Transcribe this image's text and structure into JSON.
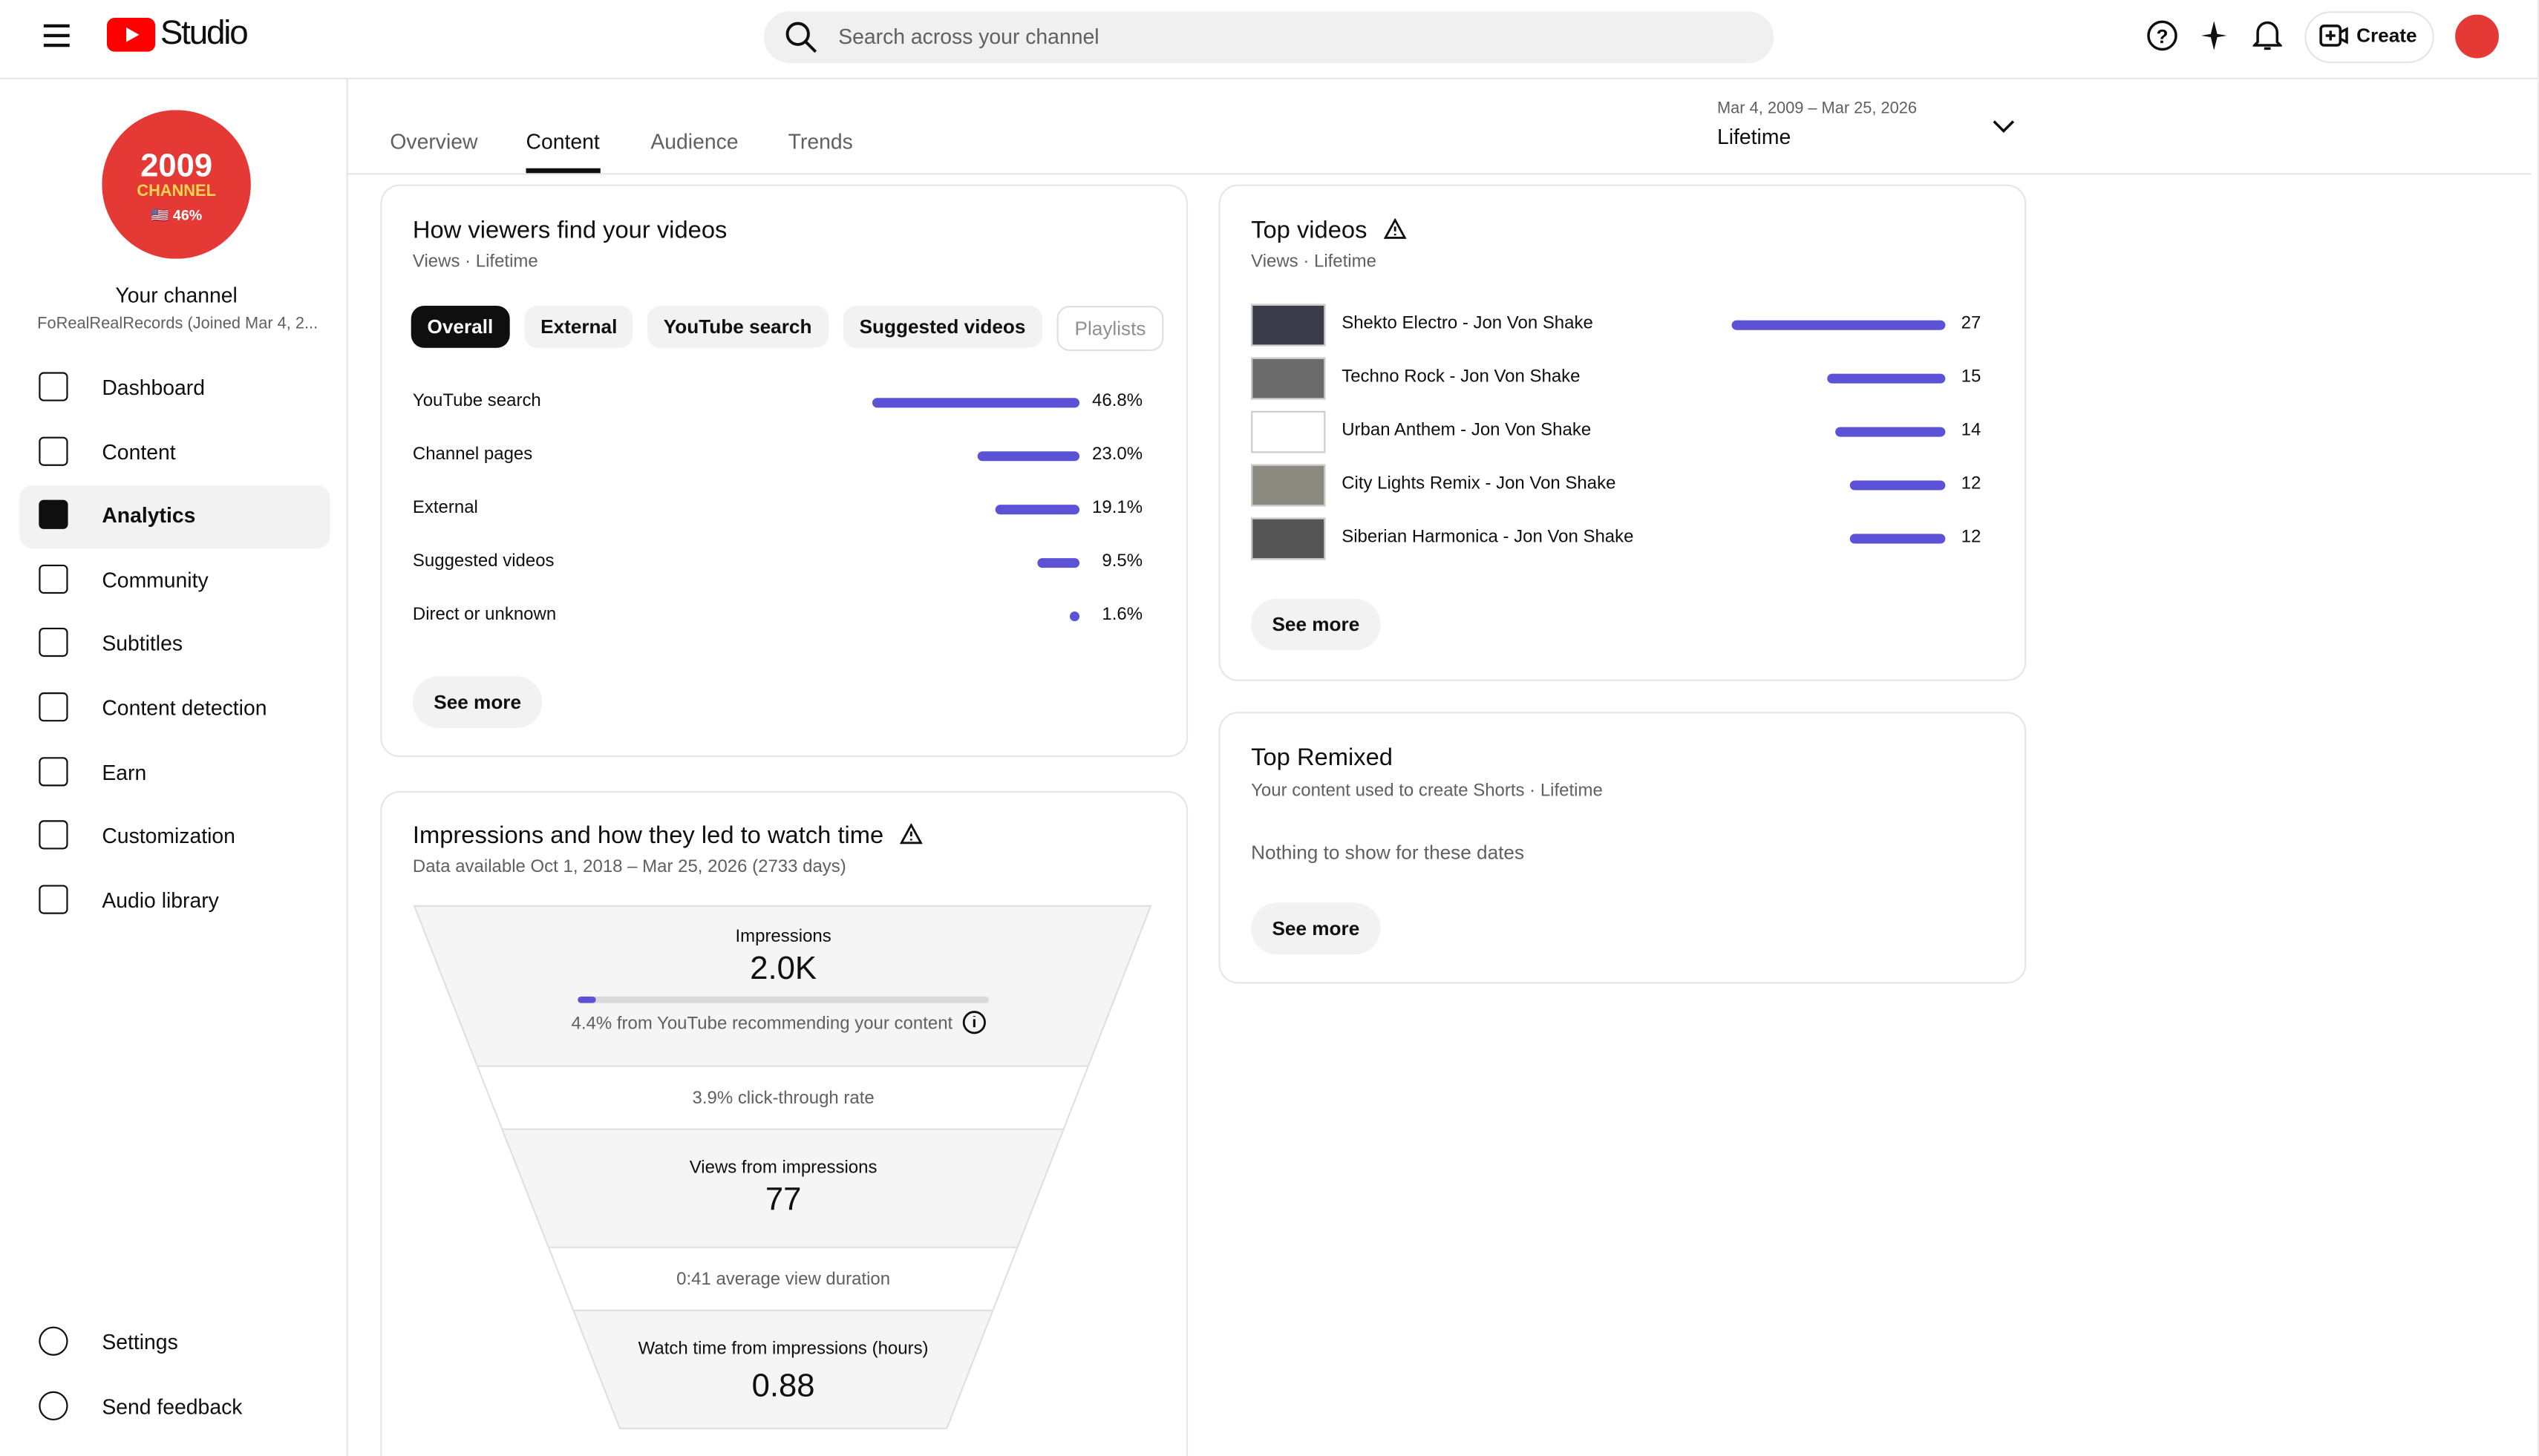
{
  "header": {
    "logo": "Studio",
    "search_placeholder": "Search across your channel",
    "create": "Create"
  },
  "sidebar": {
    "avatar": [
      "2009",
      "CHANNEL",
      "🇺🇸 46%"
    ],
    "channel_title": "Your channel",
    "channel_sub": "FoRealRealRecords (Joined Mar 4, 2...",
    "nav": [
      "Dashboard",
      "Content",
      "Analytics",
      "Community",
      "Subtitles",
      "Content detection",
      "Earn",
      "Customization",
      "Audio library"
    ],
    "bottom": [
      "Settings",
      "Send feedback"
    ]
  },
  "tabs": [
    "Overview",
    "Content",
    "Audience",
    "Trends"
  ],
  "date_range": {
    "range": "Mar 4, 2009 – Mar 25, 2026",
    "label": "Lifetime"
  },
  "traffic": {
    "title": "How viewers find your videos",
    "subtitle": "Views · Lifetime",
    "chips": [
      "Overall",
      "External",
      "YouTube search",
      "Suggested videos",
      "Playlists"
    ],
    "rows": [
      {
        "name": "YouTube search",
        "value": 46.8,
        "label": "46.8%"
      },
      {
        "name": "Channel pages",
        "value": 23.0,
        "label": "23.0%"
      },
      {
        "name": "External",
        "value": 19.1,
        "label": "19.1%"
      },
      {
        "name": "Suggested videos",
        "value": 9.5,
        "label": "9.5%"
      },
      {
        "name": "Direct or unknown",
        "value": 1.6,
        "label": "1.6%"
      }
    ],
    "see_more": "See more"
  },
  "impressions": {
    "title": "Impressions and how they led to watch time",
    "subtitle": "Data available Oct 1, 2018 – Mar 25, 2026 (2733 days)",
    "impressions_label": "Impressions",
    "impressions_value": "2.0K",
    "recommended": {
      "value": 4.4,
      "label": "4.4% from YouTube recommending your content"
    },
    "ctr": "3.9% click-through rate",
    "views_label": "Views from impressions",
    "views_value": "77",
    "avg_duration": "0:41 average view duration",
    "watch_label": "Watch time from impressions (hours)",
    "watch_value": "0.88"
  },
  "top_videos": {
    "title": "Top videos",
    "subtitle": "Views · Lifetime",
    "items": [
      {
        "title": "Shekto Electro - Jon Von Shake",
        "views": 27
      },
      {
        "title": "Techno Rock - Jon Von Shake",
        "views": 15
      },
      {
        "title": "Urban Anthem - Jon Von Shake",
        "views": 14
      },
      {
        "title": "City Lights Remix - Jon Von Shake",
        "views": 12
      },
      {
        "title": "Siberian Harmonica - Jon Von Shake",
        "views": 12
      }
    ],
    "see_more": "See more"
  },
  "top_remixed": {
    "title": "Top Remixed",
    "subtitle": "Your content used to create Shorts · Lifetime",
    "empty": "Nothing to show for these dates",
    "see_more": "See more"
  }
}
